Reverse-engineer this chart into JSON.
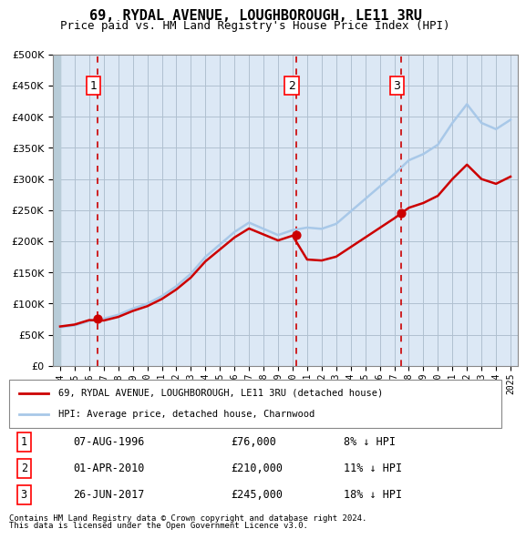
{
  "title": "69, RYDAL AVENUE, LOUGHBOROUGH, LE11 3RU",
  "subtitle": "Price paid vs. HM Land Registry's House Price Index (HPI)",
  "hpi_years": [
    1994,
    1995,
    1996,
    1997,
    1998,
    1999,
    2000,
    2001,
    2002,
    2003,
    2004,
    2005,
    2006,
    2007,
    2008,
    2009,
    2010,
    2011,
    2012,
    2013,
    2014,
    2015,
    2016,
    2017,
    2018,
    2019,
    2020,
    2021,
    2022,
    2023,
    2024,
    2025
  ],
  "hpi_values": [
    62000,
    65000,
    72000,
    76000,
    82000,
    92000,
    100000,
    112000,
    128000,
    148000,
    175000,
    195000,
    215000,
    230000,
    220000,
    210000,
    218000,
    222000,
    220000,
    228000,
    248000,
    268000,
    288000,
    308000,
    330000,
    340000,
    355000,
    390000,
    420000,
    390000,
    380000,
    395000
  ],
  "price_paid_years": [
    1996.6,
    2010.25,
    2017.48
  ],
  "price_paid_values": [
    76000,
    210000,
    245000
  ],
  "sale_labels": [
    "1",
    "2",
    "3"
  ],
  "sale_dates": [
    "07-AUG-1996",
    "01-APR-2010",
    "26-JUN-2017"
  ],
  "sale_prices": [
    "£76,000",
    "£210,000",
    "£245,000"
  ],
  "sale_hpi_diff": [
    "8% ↓ HPI",
    "11% ↓ HPI",
    "18% ↓ HPI"
  ],
  "vline_years": [
    1996.6,
    2010.25,
    2017.48
  ],
  "legend_line1": "69, RYDAL AVENUE, LOUGHBOROUGH, LE11 3RU (detached house)",
  "legend_line2": "HPI: Average price, detached house, Charnwood",
  "footnote1": "Contains HM Land Registry data © Crown copyright and database right 2024.",
  "footnote2": "This data is licensed under the Open Government Licence v3.0.",
  "ylim": [
    0,
    500000
  ],
  "yticks": [
    0,
    50000,
    100000,
    150000,
    200000,
    250000,
    300000,
    350000,
    400000,
    450000,
    500000
  ],
  "hpi_color": "#a8c8e8",
  "price_color": "#cc0000",
  "vline_color": "#cc0000",
  "bg_plot_color": "#dce8f5",
  "bg_hatch_color": "#c0d0e0",
  "grid_color": "#b0c0d0"
}
